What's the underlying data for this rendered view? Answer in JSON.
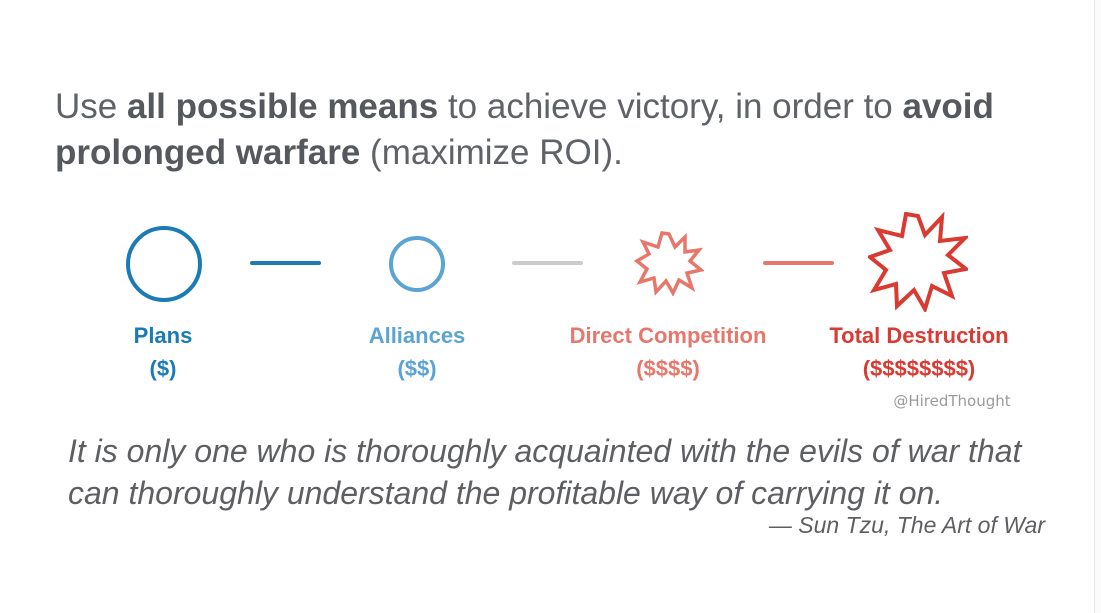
{
  "headline": {
    "part1": "Use ",
    "bold1": "all possible means",
    "part2": " to achieve victory, in order to ",
    "bold2": "avoid prolonged warfare",
    "part3": " (maximize ROI)."
  },
  "stages": [
    {
      "label": "Plans",
      "cost": "($)",
      "icon": "circle-icon",
      "color": "#1b7bb4"
    },
    {
      "label": "Alliances",
      "cost": "($$)",
      "icon": "circle-icon",
      "color": "#5aa4d3"
    },
    {
      "label": "Direct Competition",
      "cost": "($$$$)",
      "icon": "burst-icon",
      "color": "#e8776b"
    },
    {
      "label": "Total Destruction",
      "cost": "($$$$$$$$)",
      "icon": "burst-icon",
      "color": "#d93a31"
    }
  ],
  "connectors": [
    {
      "color": "#1b7bb4"
    },
    {
      "color": "#cccccc"
    },
    {
      "color": "#e8776b"
    }
  ],
  "credit": "@HiredThought",
  "quote": {
    "text": "It is only one who is thoroughly acquainted with the evils of war that can thoroughly understand the profitable way of carrying it on.",
    "attribution": "— Sun Tzu, The Art of War"
  }
}
